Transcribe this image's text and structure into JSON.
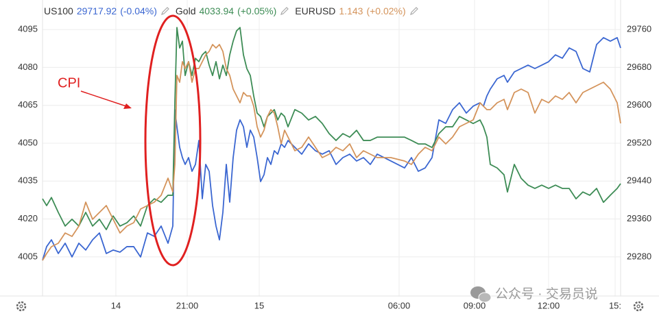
{
  "chart_data": {
    "type": "line",
    "xlim": [
      0,
      843
    ],
    "xticks": [
      {
        "value": 107,
        "label": "14"
      },
      {
        "value": 211,
        "label": "21:00"
      },
      {
        "value": 316,
        "label": "15"
      },
      {
        "value": 520,
        "label": "06:00"
      },
      {
        "value": 630,
        "label": "09:00"
      },
      {
        "value": 738,
        "label": "12:00"
      },
      {
        "value": 835,
        "label": "15:"
      }
    ],
    "ylim": [
      3989.5,
      4106.7
    ],
    "yticks": [
      4005,
      4020,
      4035,
      4050,
      4065,
      4080,
      4095
    ],
    "y2lim": [
      29197.5,
      29822.2
    ],
    "y2ticks": [
      29280,
      29360,
      29440,
      29520,
      29600,
      29680,
      29760
    ],
    "y3lim": [
      1.1178,
      1.161
    ],
    "grid": true,
    "annotation": "CPI",
    "watermark": "公众号 · 交易员说",
    "x": [
      0,
      6,
      13,
      23,
      33,
      43,
      53,
      63,
      73,
      83,
      93,
      103,
      113,
      123,
      133,
      143,
      153,
      163,
      173,
      183,
      190,
      193,
      196,
      200,
      204,
      208,
      213,
      218,
      223,
      228,
      233,
      238,
      243,
      248,
      253,
      258,
      263,
      268,
      273,
      278,
      283,
      288,
      293,
      298,
      303,
      308,
      313,
      318,
      323,
      328,
      333,
      338,
      343,
      348,
      353,
      358,
      368,
      378,
      388,
      398,
      408,
      418,
      428,
      438,
      448,
      458,
      468,
      478,
      488,
      508,
      528,
      538,
      548,
      558,
      568,
      578,
      588,
      598,
      608,
      618,
      628,
      638,
      643,
      648,
      653,
      663,
      673,
      678,
      688,
      698,
      708,
      718,
      728,
      738,
      748,
      758,
      768,
      778,
      788,
      798,
      808,
      818,
      828,
      838,
      843
    ],
    "series": [
      {
        "name": "US100",
        "last": 29717.92,
        "change": "(-0.04%)",
        "color": "#3a66d1",
        "axis": "y2",
        "values": [
          29272.8,
          29301.7,
          29316.1,
          29287.2,
          29308.9,
          29280.0,
          29308.9,
          29294.5,
          29316.1,
          29330.6,
          29287.2,
          29294.5,
          29290.1,
          29301.7,
          29301.7,
          29280.0,
          29330.6,
          29323.4,
          29345.1,
          29308.9,
          29345.1,
          29590.8,
          29554.7,
          29511.3,
          29489.6,
          29475.2,
          29489.6,
          29460.7,
          29475.2,
          29525.8,
          29402.9,
          29475.2,
          29460.7,
          29388.4,
          29345.1,
          29316.1,
          29374.0,
          29475.2,
          29395.7,
          29489.6,
          29547.5,
          29569.2,
          29554.7,
          29511.3,
          29547.5,
          29533.0,
          29489.6,
          29439.0,
          29453.5,
          29489.6,
          29475.2,
          29504.1,
          29496.9,
          29518.6,
          29511.3,
          29525.8,
          29511.3,
          29496.9,
          29518.6,
          29504.1,
          29496.9,
          29504.1,
          29475.2,
          29489.6,
          29496.9,
          29482.4,
          29489.6,
          29475.2,
          29496.9,
          29482.4,
          29467.9,
          29489.6,
          29460.7,
          29467.9,
          29489.6,
          29569.2,
          29561.9,
          29590.8,
          29605.3,
          29583.6,
          29598.1,
          29605.3,
          29598.1,
          29619.8,
          29634.2,
          29655.9,
          29663.1,
          29648.7,
          29670.4,
          29677.6,
          29684.8,
          29677.6,
          29684.8,
          29692.0,
          29706.5,
          29699.3,
          29721.0,
          29713.7,
          29677.6,
          29670.4,
          29728.2,
          29742.7,
          29735.4,
          29742.7,
          29721.0
        ]
      },
      {
        "name": "Gold",
        "last": 4033.94,
        "change": "(+0.05%)",
        "color": "#3d8c55",
        "axis": "y",
        "values": [
          4028.0,
          4025.3,
          4028.5,
          4022.6,
          4017.2,
          4019.9,
          4017.2,
          4022.6,
          4017.2,
          4019.9,
          4015.8,
          4021.2,
          4017.2,
          4018.5,
          4021.2,
          4017.2,
          4025.3,
          4028.0,
          4026.6,
          4029.4,
          4029.4,
          4066.0,
          4095.8,
          4087.7,
          4090.4,
          4076.8,
          4082.3,
          4076.8,
          4083.6,
          4082.3,
          4085.0,
          4086.3,
          4080.9,
          4076.8,
          4082.3,
          4075.5,
          4080.9,
          4076.8,
          4085.0,
          4090.4,
          4094.5,
          4095.8,
          4085.0,
          4079.5,
          4076.8,
          4068.7,
          4061.9,
          4060.6,
          4056.5,
          4060.6,
          4061.9,
          4063.3,
          4059.2,
          4061.9,
          4060.6,
          4056.5,
          4063.3,
          4061.9,
          4059.2,
          4060.6,
          4057.8,
          4053.8,
          4051.1,
          4053.8,
          4052.4,
          4055.1,
          4051.1,
          4051.1,
          4052.4,
          4052.4,
          4052.4,
          4051.1,
          4049.7,
          4049.7,
          4048.3,
          4053.8,
          4056.5,
          4056.5,
          4060.6,
          4059.2,
          4057.8,
          4059.2,
          4056.5,
          4052.4,
          4041.6,
          4040.2,
          4037.5,
          4030.7,
          4041.6,
          4036.1,
          4033.4,
          4032.1,
          4033.4,
          4032.1,
          4033.4,
          4032.1,
          4032.1,
          4028.0,
          4030.7,
          4029.4,
          4032.1,
          4026.6,
          4029.4,
          4032.1,
          4034.0
        ]
      },
      {
        "name": "EURUSD",
        "last": 1.143,
        "change": "(+0.02%)",
        "color": "#d4935a",
        "axis": "y3",
        "values": [
          1.123,
          1.124,
          1.125,
          1.1255,
          1.127,
          1.1265,
          1.128,
          1.1315,
          1.129,
          1.13,
          1.131,
          1.129,
          1.127,
          1.128,
          1.1285,
          1.1305,
          1.131,
          1.1315,
          1.1325,
          1.135,
          1.133,
          1.137,
          1.15,
          1.149,
          1.152,
          1.151,
          1.152,
          1.149,
          1.151,
          1.151,
          1.152,
          1.153,
          1.1535,
          1.1545,
          1.154,
          1.1545,
          1.1535,
          1.151,
          1.15,
          1.148,
          1.147,
          1.146,
          1.1475,
          1.147,
          1.147,
          1.1455,
          1.1425,
          1.141,
          1.142,
          1.144,
          1.145,
          1.1445,
          1.1425,
          1.14,
          1.142,
          1.141,
          1.139,
          1.1395,
          1.141,
          1.1395,
          1.138,
          1.1385,
          1.1395,
          1.139,
          1.14,
          1.138,
          1.139,
          1.1385,
          1.138,
          1.138,
          1.1375,
          1.137,
          1.1385,
          1.1395,
          1.139,
          1.141,
          1.14,
          1.141,
          1.1425,
          1.143,
          1.1435,
          1.146,
          1.1455,
          1.145,
          1.145,
          1.146,
          1.1465,
          1.145,
          1.1475,
          1.148,
          1.1475,
          1.1445,
          1.1465,
          1.146,
          1.147,
          1.1465,
          1.1475,
          1.146,
          1.1475,
          1.148,
          1.1485,
          1.149,
          1.148,
          1.146,
          1.143
        ]
      }
    ]
  }
}
